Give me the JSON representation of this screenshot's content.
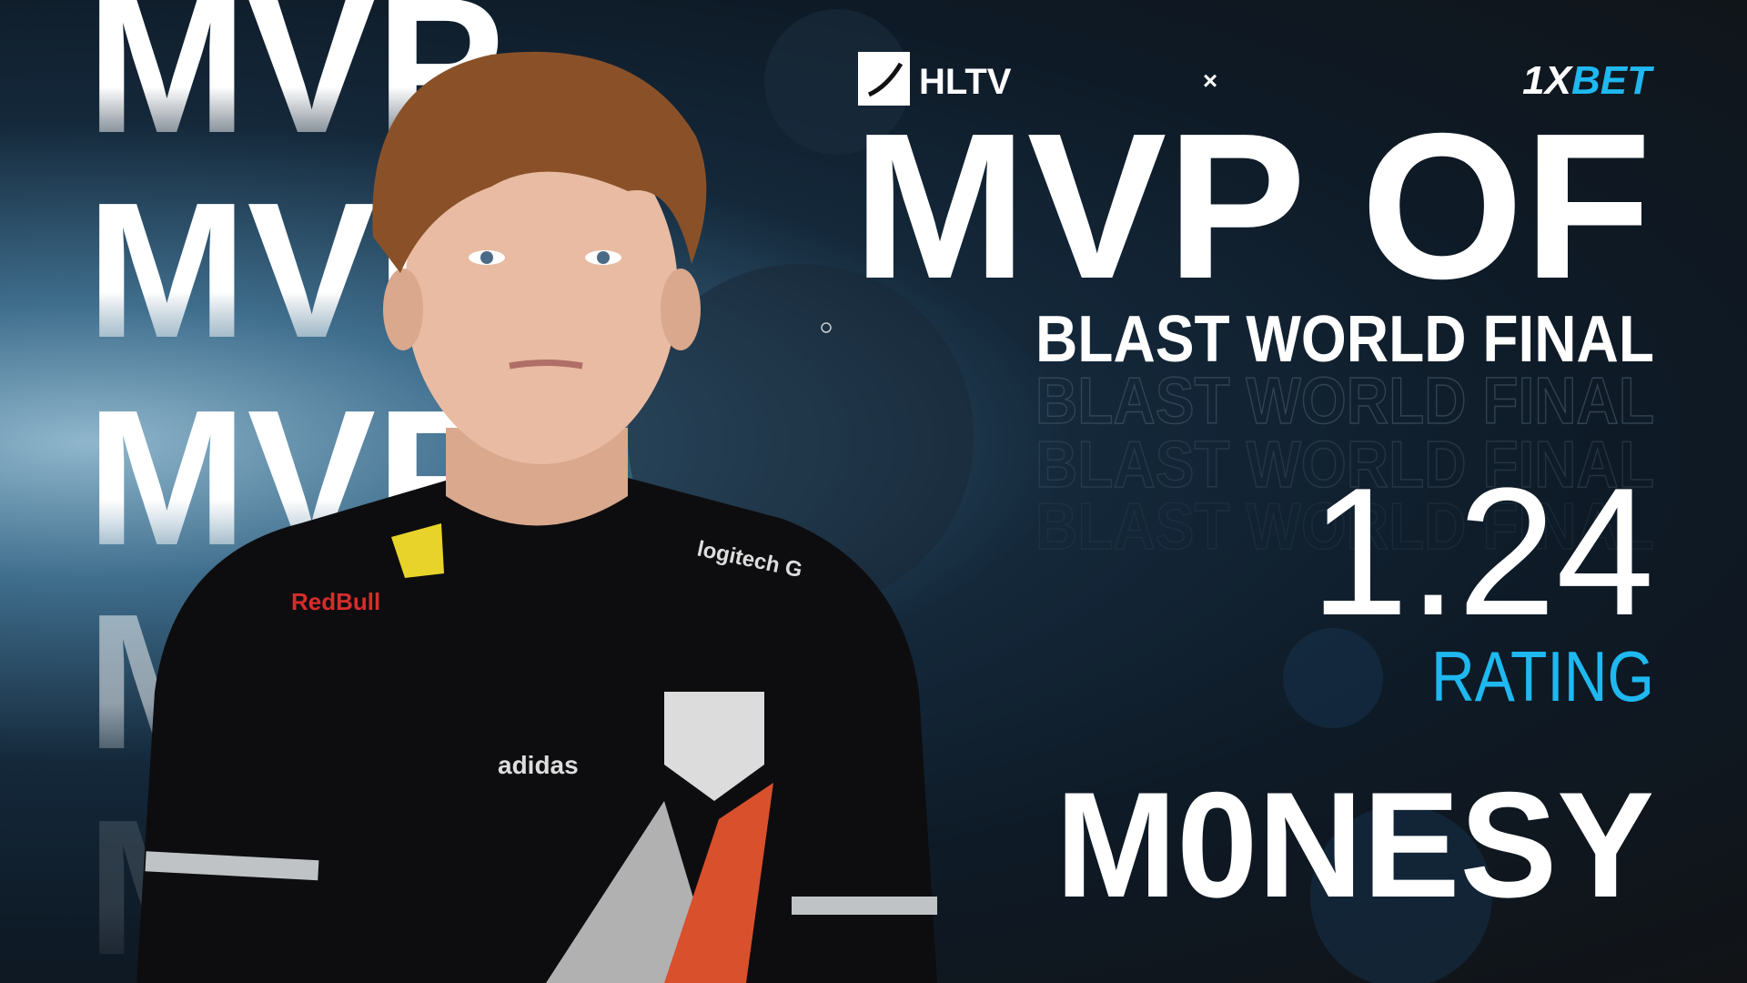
{
  "branding": {
    "hltv_logo_text": "HLTV",
    "separator": "×",
    "sponsor_logo_text": "1XBET",
    "sponsor_prefix": "1X",
    "sponsor_suffix": "BET"
  },
  "background_text": {
    "repeated_word": "MVP"
  },
  "headline": {
    "title": "MVP OF",
    "event": "BLAST WORLD FINAL",
    "event_echo": "BLAST WORLD FINAL"
  },
  "stats": {
    "rating_value": "1.24",
    "rating_label": "RATING"
  },
  "player": {
    "name": "M0NESY",
    "jersey_sponsors": [
      "Red Bull",
      "logitech G",
      "adidas"
    ]
  },
  "colors": {
    "accent_cyan": "#1fb8f0",
    "text_white": "#ffffff",
    "background_dark": "#111316"
  }
}
